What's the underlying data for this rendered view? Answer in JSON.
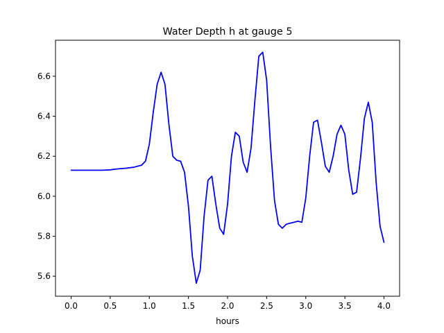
{
  "chart_data": {
    "type": "line",
    "title": "Water Depth h at gauge 5",
    "xlabel": "hours",
    "ylabel": "",
    "xlim": [
      -0.2,
      4.2
    ],
    "ylim": [
      5.5,
      6.78
    ],
    "xticks": [
      0.0,
      0.5,
      1.0,
      1.5,
      2.0,
      2.5,
      3.0,
      3.5,
      4.0
    ],
    "xtick_labels": [
      "0.0",
      "0.5",
      "1.0",
      "1.5",
      "2.0",
      "2.5",
      "3.0",
      "3.5",
      "4.0"
    ],
    "yticks": [
      5.6,
      5.8,
      6.0,
      6.2,
      6.4,
      6.6
    ],
    "ytick_labels": [
      "5.6",
      "5.8",
      "6.0",
      "6.2",
      "6.4",
      "6.6"
    ],
    "grid": false,
    "series": [
      {
        "color": "#0000ff",
        "x": [
          0.0,
          0.2,
          0.4,
          0.5,
          0.6,
          0.7,
          0.8,
          0.9,
          0.95,
          1.0,
          1.05,
          1.1,
          1.15,
          1.2,
          1.25,
          1.3,
          1.35,
          1.4,
          1.45,
          1.5,
          1.55,
          1.6,
          1.65,
          1.7,
          1.75,
          1.8,
          1.85,
          1.9,
          1.95,
          2.0,
          2.05,
          2.1,
          2.15,
          2.2,
          2.25,
          2.3,
          2.35,
          2.4,
          2.45,
          2.5,
          2.55,
          2.6,
          2.65,
          2.7,
          2.75,
          2.8,
          2.85,
          2.9,
          2.95,
          3.0,
          3.05,
          3.1,
          3.15,
          3.2,
          3.25,
          3.3,
          3.35,
          3.4,
          3.45,
          3.5,
          3.55,
          3.6,
          3.65,
          3.7,
          3.75,
          3.8,
          3.85,
          3.9,
          3.95,
          4.0
        ],
        "y": [
          6.13,
          6.13,
          6.13,
          6.132,
          6.137,
          6.14,
          6.145,
          6.155,
          6.175,
          6.26,
          6.42,
          6.56,
          6.62,
          6.56,
          6.36,
          6.2,
          6.18,
          6.175,
          6.12,
          5.95,
          5.7,
          5.565,
          5.63,
          5.9,
          6.08,
          6.1,
          5.96,
          5.84,
          5.81,
          5.96,
          6.2,
          6.32,
          6.3,
          6.17,
          6.12,
          6.24,
          6.48,
          6.7,
          6.72,
          6.58,
          6.25,
          5.98,
          5.86,
          5.84,
          5.86,
          5.865,
          5.87,
          5.875,
          5.87,
          5.99,
          6.2,
          6.37,
          6.38,
          6.27,
          6.15,
          6.12,
          6.2,
          6.31,
          6.355,
          6.31,
          6.13,
          6.01,
          6.02,
          6.19,
          6.39,
          6.47,
          6.37,
          6.07,
          5.85,
          5.77
        ]
      }
    ]
  }
}
